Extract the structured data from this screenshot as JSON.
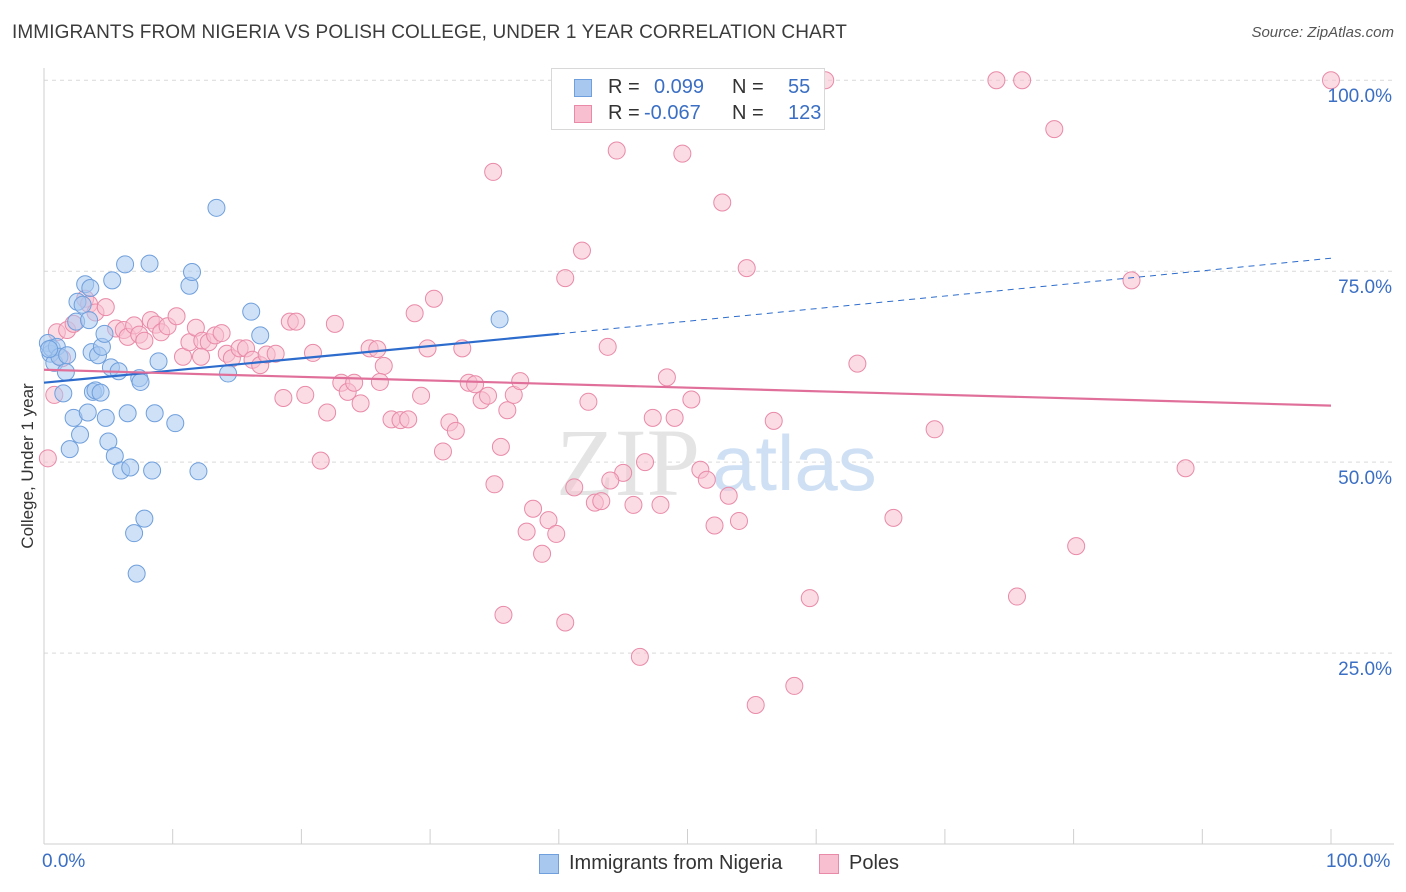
{
  "title": "IMMIGRANTS FROM NIGERIA VS POLISH COLLEGE, UNDER 1 YEAR CORRELATION CHART",
  "source": "Source: ZipAtlas.com",
  "watermark": "ZIPatlas",
  "legend_top": {
    "r_label": "R =",
    "n_label": "N =",
    "rows": [
      {
        "r": "0.099",
        "n": "55",
        "color": "#a8c8f0",
        "border": "#6f9fdc"
      },
      {
        "r": "-0.067",
        "n": "123",
        "color": "#f8bfd0",
        "border": "#e98aa8"
      }
    ]
  },
  "legend_bottom": [
    {
      "label": "Immigrants from Nigeria",
      "color": "#a8c8f0",
      "border": "#6f9fdc"
    },
    {
      "label": "Poles",
      "color": "#f8bfd0",
      "border": "#e98aa8"
    }
  ],
  "chart_data": {
    "type": "scatter",
    "xlabel": "",
    "ylabel": "College, Under 1 year",
    "xlim": [
      0,
      100
    ],
    "ylim": [
      0,
      102
    ],
    "x_tick_labels": [
      "0.0%",
      "100.0%"
    ],
    "y_ticks": [
      25,
      50,
      75,
      100
    ],
    "y_tick_labels": [
      "25.0%",
      "50.0%",
      "75.0%",
      "100.0%"
    ],
    "grid": true,
    "series": [
      {
        "name": "Immigrants from Nigeria",
        "color": "#6f9fdc",
        "fill": "#a8c8f0",
        "line_color": "#2d6ccc",
        "trend": {
          "x": [
            0,
            40
          ],
          "y": [
            60.4,
            66.8
          ],
          "dashed_to": [
            100,
            76.7
          ]
        },
        "points": [
          [
            0.3,
            65.6
          ],
          [
            0.5,
            64.2
          ],
          [
            0.6,
            64.9
          ],
          [
            0.8,
            63.0
          ],
          [
            1.0,
            65.1
          ],
          [
            1.2,
            63.8
          ],
          [
            1.5,
            59.0
          ],
          [
            1.7,
            61.8
          ],
          [
            1.8,
            64.0
          ],
          [
            2.0,
            51.7
          ],
          [
            2.3,
            55.8
          ],
          [
            2.5,
            68.4
          ],
          [
            2.6,
            71.0
          ],
          [
            2.8,
            53.6
          ],
          [
            3.0,
            70.6
          ],
          [
            3.2,
            73.3
          ],
          [
            3.4,
            56.5
          ],
          [
            3.5,
            68.6
          ],
          [
            3.6,
            72.8
          ],
          [
            3.7,
            64.4
          ],
          [
            3.8,
            59.2
          ],
          [
            4.0,
            59.4
          ],
          [
            4.2,
            64.0
          ],
          [
            4.4,
            59.1
          ],
          [
            4.5,
            65.1
          ],
          [
            4.7,
            66.8
          ],
          [
            4.8,
            55.8
          ],
          [
            5.0,
            52.7
          ],
          [
            5.2,
            62.4
          ],
          [
            5.3,
            73.8
          ],
          [
            5.5,
            50.8
          ],
          [
            5.8,
            61.9
          ],
          [
            6.0,
            48.9
          ],
          [
            6.3,
            75.9
          ],
          [
            6.5,
            56.4
          ],
          [
            6.7,
            49.3
          ],
          [
            7.0,
            40.7
          ],
          [
            7.2,
            35.4
          ],
          [
            7.4,
            61.0
          ],
          [
            7.5,
            60.5
          ],
          [
            7.8,
            42.6
          ],
          [
            8.2,
            76.0
          ],
          [
            8.4,
            48.9
          ],
          [
            8.6,
            56.4
          ],
          [
            8.9,
            63.2
          ],
          [
            10.2,
            55.1
          ],
          [
            11.3,
            73.1
          ],
          [
            11.5,
            74.9
          ],
          [
            12.0,
            48.8
          ],
          [
            13.4,
            83.3
          ],
          [
            14.3,
            61.6
          ],
          [
            16.1,
            69.7
          ],
          [
            16.8,
            66.6
          ],
          [
            35.4,
            68.7
          ],
          [
            0.4,
            64.8
          ]
        ]
      },
      {
        "name": "Poles",
        "color": "#e98aa8",
        "fill": "#f8bfd0",
        "line_color": "#e0709a",
        "trend": {
          "x": [
            0,
            100
          ],
          "y": [
            62.1,
            57.4
          ]
        },
        "points": [
          [
            0.3,
            50.5
          ],
          [
            0.8,
            58.8
          ],
          [
            1.0,
            67.0
          ],
          [
            1.4,
            63.6
          ],
          [
            1.8,
            67.3
          ],
          [
            2.3,
            68.1
          ],
          [
            3.2,
            71.4
          ],
          [
            3.5,
            70.7
          ],
          [
            4.0,
            69.6
          ],
          [
            4.8,
            70.3
          ],
          [
            5.6,
            67.5
          ],
          [
            6.2,
            67.3
          ],
          [
            6.5,
            66.4
          ],
          [
            7.0,
            67.9
          ],
          [
            7.4,
            66.7
          ],
          [
            7.8,
            65.9
          ],
          [
            8.3,
            68.6
          ],
          [
            8.7,
            68.0
          ],
          [
            9.1,
            67.0
          ],
          [
            9.6,
            67.8
          ],
          [
            10.3,
            69.1
          ],
          [
            10.8,
            63.8
          ],
          [
            11.3,
            65.7
          ],
          [
            11.8,
            67.6
          ],
          [
            12.3,
            65.9
          ],
          [
            12.8,
            65.7
          ],
          [
            13.3,
            66.6
          ],
          [
            13.8,
            66.9
          ],
          [
            14.2,
            64.2
          ],
          [
            14.6,
            63.6
          ],
          [
            15.2,
            64.9
          ],
          [
            15.7,
            64.9
          ],
          [
            16.2,
            63.4
          ],
          [
            16.8,
            62.7
          ],
          [
            17.3,
            64.1
          ],
          [
            18.0,
            64.2
          ],
          [
            18.6,
            58.4
          ],
          [
            19.1,
            68.4
          ],
          [
            19.6,
            68.4
          ],
          [
            20.3,
            58.8
          ],
          [
            20.9,
            64.3
          ],
          [
            21.5,
            50.2
          ],
          [
            22.0,
            56.5
          ],
          [
            22.6,
            68.1
          ],
          [
            23.1,
            60.4
          ],
          [
            23.6,
            59.2
          ],
          [
            24.1,
            60.4
          ],
          [
            24.6,
            57.7
          ],
          [
            25.3,
            64.9
          ],
          [
            25.9,
            64.8
          ],
          [
            26.4,
            62.6
          ],
          [
            27.0,
            55.6
          ],
          [
            27.7,
            55.5
          ],
          [
            28.3,
            55.6
          ],
          [
            28.8,
            69.5
          ],
          [
            29.3,
            58.7
          ],
          [
            29.8,
            64.9
          ],
          [
            30.3,
            71.4
          ],
          [
            31.0,
            51.4
          ],
          [
            31.5,
            55.2
          ],
          [
            32.0,
            54.1
          ],
          [
            32.5,
            64.9
          ],
          [
            33.0,
            60.4
          ],
          [
            33.5,
            60.2
          ],
          [
            34.0,
            58.1
          ],
          [
            34.5,
            58.7
          ],
          [
            35.0,
            47.1
          ],
          [
            35.5,
            52.0
          ],
          [
            36.0,
            56.8
          ],
          [
            36.5,
            58.8
          ],
          [
            37.0,
            60.6
          ],
          [
            37.5,
            40.9
          ],
          [
            38.0,
            43.9
          ],
          [
            38.7,
            38.0
          ],
          [
            39.2,
            42.4
          ],
          [
            39.8,
            40.6
          ],
          [
            40.5,
            74.1
          ],
          [
            41.2,
            46.7
          ],
          [
            41.8,
            77.7
          ],
          [
            42.3,
            57.9
          ],
          [
            42.8,
            44.7
          ],
          [
            43.3,
            44.9
          ],
          [
            43.8,
            65.1
          ],
          [
            44.5,
            90.8
          ],
          [
            45.0,
            48.6
          ],
          [
            45.8,
            44.4
          ],
          [
            46.3,
            24.5
          ],
          [
            46.7,
            50.0
          ],
          [
            47.3,
            55.8
          ],
          [
            47.9,
            44.4
          ],
          [
            48.4,
            61.1
          ],
          [
            49.0,
            55.8
          ],
          [
            49.6,
            90.4
          ],
          [
            50.3,
            58.2
          ],
          [
            51.0,
            49.0
          ],
          [
            51.5,
            47.7
          ],
          [
            52.1,
            41.7
          ],
          [
            52.7,
            84.0
          ],
          [
            53.2,
            45.6
          ],
          [
            54.0,
            42.3
          ],
          [
            54.6,
            75.4
          ],
          [
            55.3,
            18.2
          ],
          [
            56.7,
            55.4
          ],
          [
            58.3,
            20.7
          ],
          [
            59.5,
            32.2
          ],
          [
            60.7,
            100.0
          ],
          [
            63.2,
            62.9
          ],
          [
            66.0,
            42.7
          ],
          [
            69.2,
            54.3
          ],
          [
            74.0,
            100.0
          ],
          [
            76.0,
            100.0
          ],
          [
            75.6,
            32.4
          ],
          [
            78.5,
            93.6
          ],
          [
            80.2,
            39.0
          ],
          [
            84.5,
            73.8
          ],
          [
            88.7,
            49.2
          ],
          [
            100.0,
            100.0
          ],
          [
            34.9,
            88.0
          ],
          [
            40.5,
            29.0
          ],
          [
            35.7,
            30.0
          ],
          [
            12.2,
            63.8
          ],
          [
            26.1,
            60.5
          ],
          [
            44.0,
            47.6
          ]
        ]
      }
    ]
  }
}
